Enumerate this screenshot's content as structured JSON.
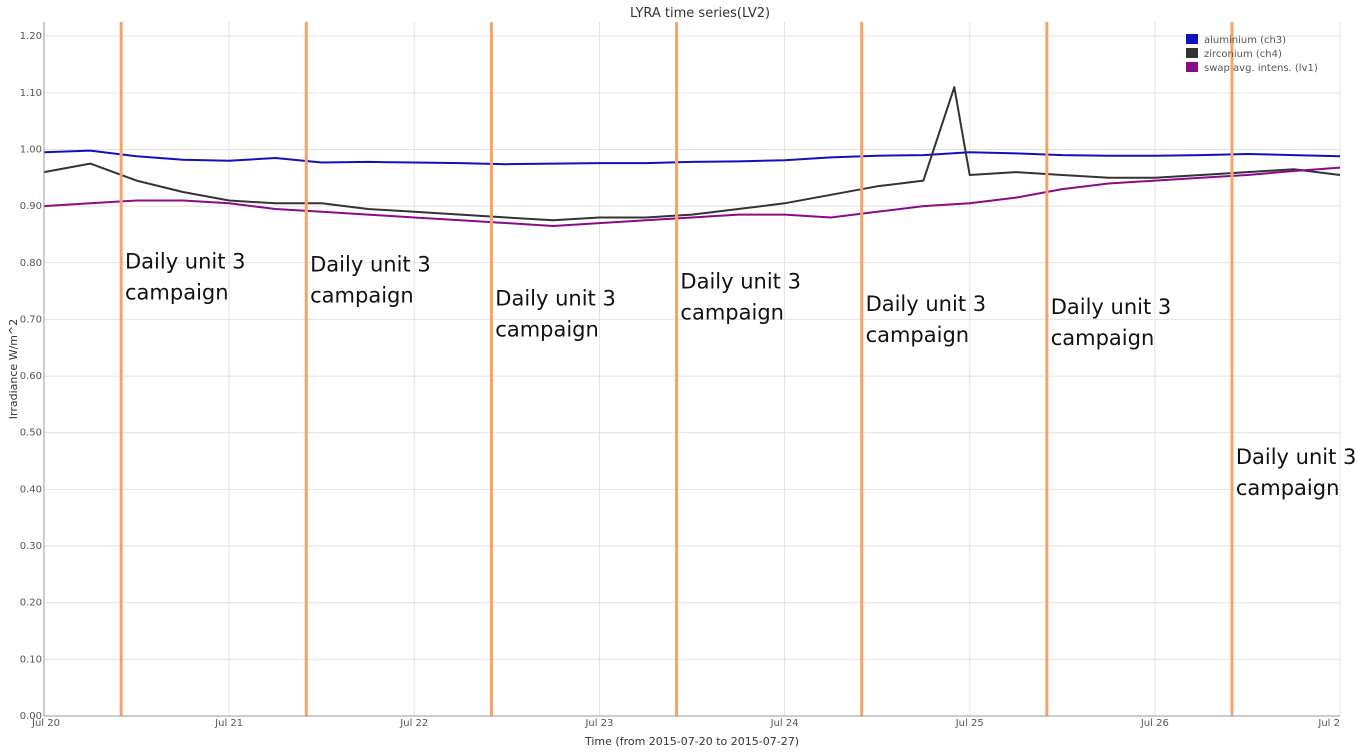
{
  "chart_data": {
    "type": "line",
    "title": "LYRA time series(LV2)",
    "xlabel": "Time (from 2015-07-20 to 2015-07-27)",
    "ylabel": "Irradiance W/m^2",
    "ylim": [
      0,
      1.225
    ],
    "xlim": [
      "2015-07-20",
      "2015-07-27"
    ],
    "x_tick_labels": [
      "Jul 20",
      "Jul 21",
      "Jul 22",
      "Jul 23",
      "Jul 24",
      "Jul 25",
      "Jul 26",
      "Jul 2"
    ],
    "y_ticks": [
      0.0,
      0.1,
      0.2,
      0.3,
      0.4,
      0.5,
      0.6,
      0.7,
      0.8,
      0.9,
      1.0,
      1.1,
      1.2
    ],
    "y_tick_labels": [
      "0.00",
      "0.10",
      "0.20",
      "0.30",
      "0.40",
      "0.50",
      "0.60",
      "0.70",
      "0.80",
      "0.90",
      "1.00",
      "1.10",
      "1.20"
    ],
    "grid": true,
    "legend_position": "top-right",
    "colors": {
      "aluminium": "#1111bb",
      "zirconium": "#333333",
      "swap": "#8b0a8b",
      "campaign": "#f5a36a"
    },
    "series": [
      {
        "name": "aluminium (ch3)",
        "x": [
          "2015-07-20 00:00",
          "2015-07-20 06:00",
          "2015-07-20 12:00",
          "2015-07-20 18:00",
          "2015-07-21 00:00",
          "2015-07-21 06:00",
          "2015-07-21 12:00",
          "2015-07-21 18:00",
          "2015-07-22 00:00",
          "2015-07-22 06:00",
          "2015-07-22 12:00",
          "2015-07-22 18:00",
          "2015-07-23 00:00",
          "2015-07-23 06:00",
          "2015-07-23 12:00",
          "2015-07-23 18:00",
          "2015-07-24 00:00",
          "2015-07-24 06:00",
          "2015-07-24 12:00",
          "2015-07-24 18:00",
          "2015-07-25 00:00",
          "2015-07-25 06:00",
          "2015-07-25 12:00",
          "2015-07-25 18:00",
          "2015-07-26 00:00",
          "2015-07-26 06:00",
          "2015-07-26 12:00",
          "2015-07-26 18:00",
          "2015-07-27 00:00"
        ],
        "values": [
          0.995,
          0.998,
          0.988,
          0.982,
          0.98,
          0.985,
          0.977,
          0.978,
          0.977,
          0.976,
          0.974,
          0.975,
          0.976,
          0.976,
          0.978,
          0.979,
          0.981,
          0.986,
          0.989,
          0.99,
          0.995,
          0.993,
          0.99,
          0.989,
          0.989,
          0.99,
          0.992,
          0.99,
          0.988
        ]
      },
      {
        "name": "zirconium (ch4)",
        "x": [
          "2015-07-20 00:00",
          "2015-07-20 06:00",
          "2015-07-20 12:00",
          "2015-07-20 18:00",
          "2015-07-21 00:00",
          "2015-07-21 06:00",
          "2015-07-21 12:00",
          "2015-07-21 18:00",
          "2015-07-22 00:00",
          "2015-07-22 06:00",
          "2015-07-22 12:00",
          "2015-07-22 18:00",
          "2015-07-23 00:00",
          "2015-07-23 06:00",
          "2015-07-23 12:00",
          "2015-07-23 18:00",
          "2015-07-24 00:00",
          "2015-07-24 06:00",
          "2015-07-24 12:00",
          "2015-07-24 18:00",
          "2015-07-24 22:00",
          "2015-07-25 00:00",
          "2015-07-25 06:00",
          "2015-07-25 12:00",
          "2015-07-25 18:00",
          "2015-07-26 00:00",
          "2015-07-26 06:00",
          "2015-07-26 12:00",
          "2015-07-26 18:00",
          "2015-07-27 00:00"
        ],
        "values": [
          0.96,
          0.975,
          0.945,
          0.925,
          0.91,
          0.905,
          0.905,
          0.895,
          0.89,
          0.885,
          0.88,
          0.875,
          0.88,
          0.88,
          0.885,
          0.895,
          0.905,
          0.92,
          0.935,
          0.945,
          1.11,
          0.955,
          0.96,
          0.955,
          0.95,
          0.95,
          0.955,
          0.96,
          0.965,
          0.955
        ]
      },
      {
        "name": "swap avg. intens. (lv1)",
        "x": [
          "2015-07-20 00:00",
          "2015-07-20 06:00",
          "2015-07-20 12:00",
          "2015-07-20 18:00",
          "2015-07-21 00:00",
          "2015-07-21 06:00",
          "2015-07-21 12:00",
          "2015-07-21 18:00",
          "2015-07-22 00:00",
          "2015-07-22 06:00",
          "2015-07-22 12:00",
          "2015-07-22 18:00",
          "2015-07-23 00:00",
          "2015-07-23 06:00",
          "2015-07-23 12:00",
          "2015-07-23 18:00",
          "2015-07-24 00:00",
          "2015-07-24 06:00",
          "2015-07-24 12:00",
          "2015-07-24 18:00",
          "2015-07-25 00:00",
          "2015-07-25 06:00",
          "2015-07-25 12:00",
          "2015-07-25 18:00",
          "2015-07-26 00:00",
          "2015-07-26 06:00",
          "2015-07-26 12:00",
          "2015-07-26 18:00",
          "2015-07-27 00:00"
        ],
        "values": [
          0.9,
          0.905,
          0.91,
          0.91,
          0.905,
          0.895,
          0.89,
          0.885,
          0.88,
          0.875,
          0.87,
          0.865,
          0.87,
          0.875,
          0.88,
          0.885,
          0.885,
          0.88,
          0.89,
          0.9,
          0.905,
          0.915,
          0.93,
          0.94,
          0.945,
          0.95,
          0.955,
          0.962,
          0.968
        ]
      }
    ],
    "campaign_markers": [
      "2015-07-20 10:00",
      "2015-07-21 10:00",
      "2015-07-22 10:00",
      "2015-07-23 10:00",
      "2015-07-24 10:00",
      "2015-07-25 10:00",
      "2015-07-26 10:00"
    ],
    "annotations": [
      {
        "lines": [
          "Daily unit 3",
          "campaign"
        ],
        "x": "2015-07-20 10:30",
        "y": 0.79
      },
      {
        "lines": [
          "Daily unit 3",
          "campaign"
        ],
        "x": "2015-07-21 10:30",
        "y": 0.785
      },
      {
        "lines": [
          "Daily unit 3",
          "campaign"
        ],
        "x": "2015-07-22 10:30",
        "y": 0.725
      },
      {
        "lines": [
          "Daily unit 3",
          "campaign"
        ],
        "x": "2015-07-23 10:30",
        "y": 0.755
      },
      {
        "lines": [
          "Daily unit 3",
          "campaign"
        ],
        "x": "2015-07-24 10:30",
        "y": 0.715
      },
      {
        "lines": [
          "Daily unit 3",
          "campaign"
        ],
        "x": "2015-07-25 10:30",
        "y": 0.71
      },
      {
        "lines": [
          "Daily unit 3",
          "campaign"
        ],
        "x": "2015-07-26 10:30",
        "y": 0.445
      }
    ]
  }
}
